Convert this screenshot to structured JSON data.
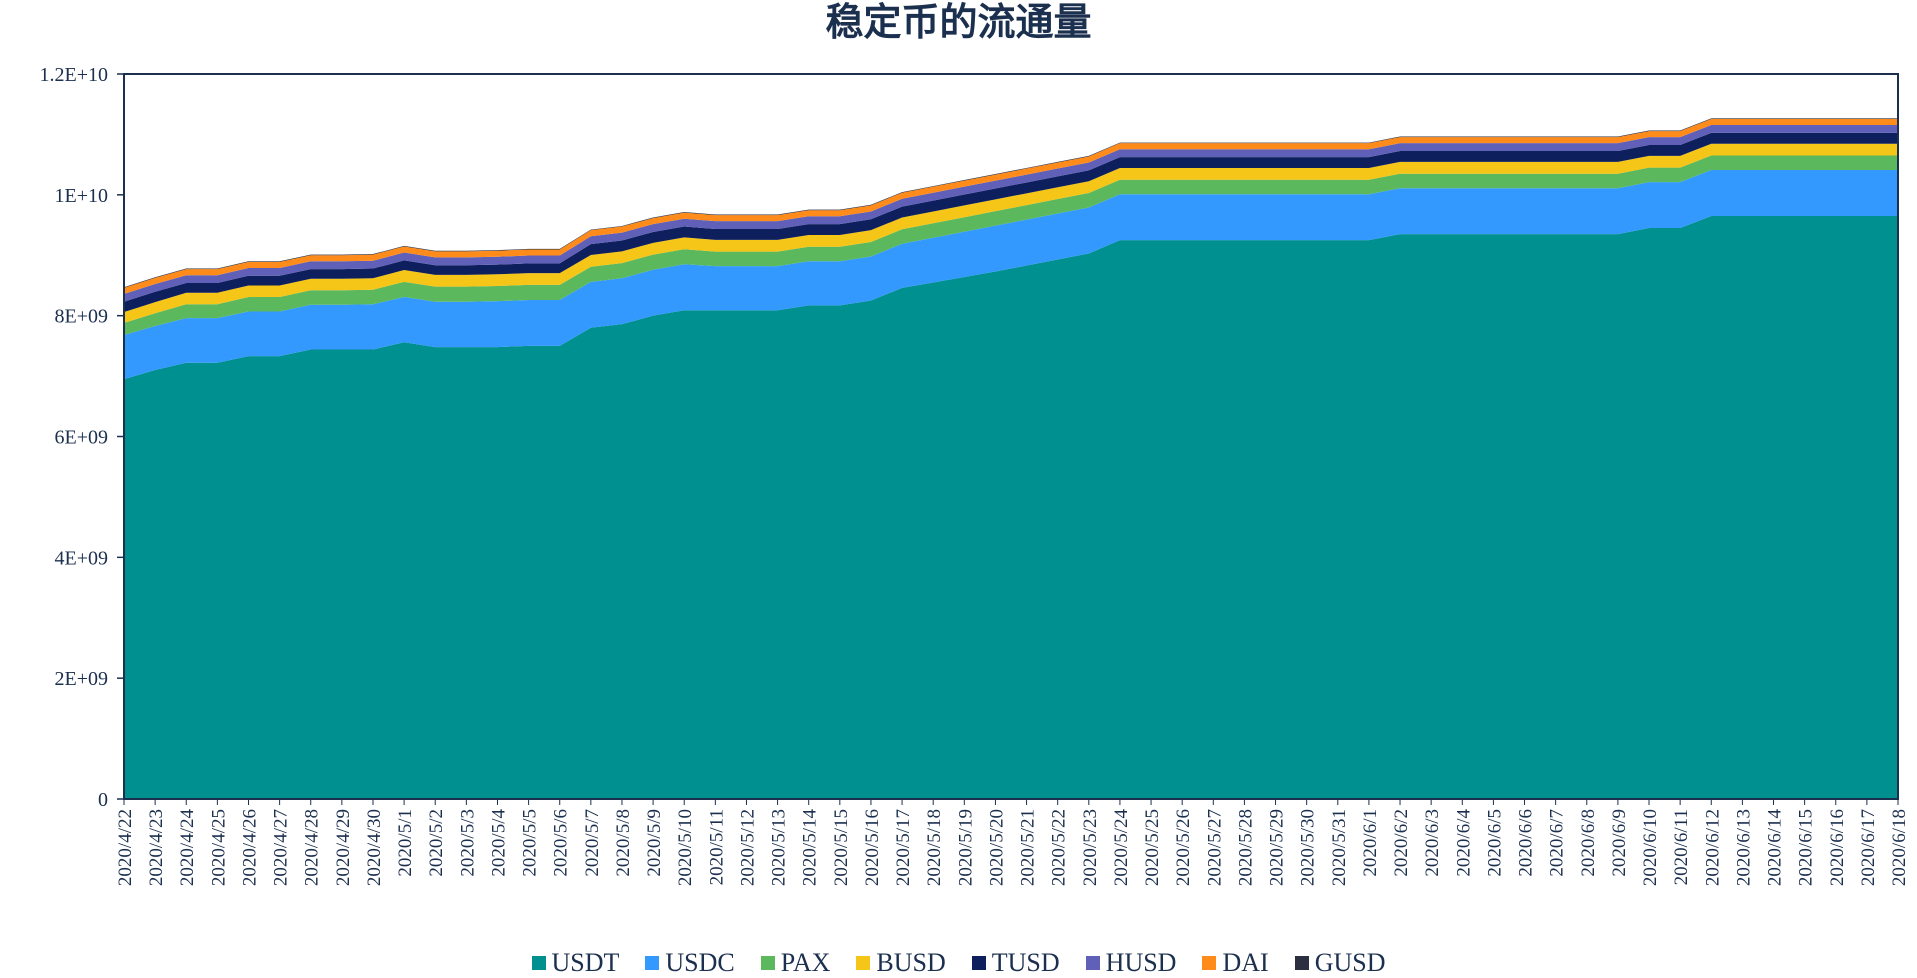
{
  "chart_data": {
    "type": "area",
    "stacked": true,
    "title": "稳定币的流通量",
    "xlabel": "",
    "ylabel": "",
    "ylim": [
      0,
      12000000000
    ],
    "y_ticks": [
      "0",
      "2E+09",
      "4E+09",
      "6E+09",
      "8E+09",
      "1E+10",
      "1.2E+10"
    ],
    "y_tick_values": [
      0,
      2000000000,
      4000000000,
      6000000000,
      8000000000,
      10000000000,
      12000000000
    ],
    "grid": false,
    "legend_position": "bottom",
    "x": [
      "2020/4/22",
      "2020/4/23",
      "2020/4/24",
      "2020/4/25",
      "2020/4/26",
      "2020/4/27",
      "2020/4/28",
      "2020/4/29",
      "2020/4/30",
      "2020/5/1",
      "2020/5/2",
      "2020/5/3",
      "2020/5/4",
      "2020/5/5",
      "2020/5/6",
      "2020/5/7",
      "2020/5/8",
      "2020/5/9",
      "2020/5/10",
      "2020/5/11",
      "2020/5/12",
      "2020/5/13",
      "2020/5/14",
      "2020/5/15",
      "2020/5/16",
      "2020/5/17",
      "2020/5/18",
      "2020/5/19",
      "2020/5/20",
      "2020/5/21",
      "2020/5/22",
      "2020/5/23",
      "2020/5/24",
      "2020/5/25",
      "2020/5/26",
      "2020/5/27",
      "2020/5/28",
      "2020/5/29",
      "2020/5/30",
      "2020/5/31",
      "2020/6/1",
      "2020/6/2",
      "2020/6/3",
      "2020/6/4",
      "2020/6/5",
      "2020/6/6",
      "2020/6/7",
      "2020/6/8",
      "2020/6/9",
      "2020/6/10",
      "2020/6/11",
      "2020/6/12",
      "2020/6/13",
      "2020/6/14",
      "2020/6/15",
      "2020/6/16",
      "2020/6/17",
      "2020/6/18"
    ],
    "series": [
      {
        "name": "USDT",
        "color": "#009090",
        "values": [
          6950000000,
          7100000000,
          7220000000,
          7220000000,
          7330000000,
          7330000000,
          7440000000,
          7440000000,
          7440000000,
          7560000000,
          7480000000,
          7480000000,
          7480000000,
          7500000000,
          7500000000,
          7800000000,
          7860000000,
          8000000000,
          8090000000,
          8090000000,
          8090000000,
          8090000000,
          8170000000,
          8170000000,
          8250000000,
          8460000000,
          8550000000,
          8640000000,
          8730000000,
          8830000000,
          8930000000,
          9030000000,
          9250000000,
          9250000000,
          9250000000,
          9250000000,
          9250000000,
          9250000000,
          9250000000,
          9250000000,
          9250000000,
          9350000000,
          9350000000,
          9350000000,
          9350000000,
          9350000000,
          9350000000,
          9350000000,
          9350000000,
          9450000000,
          9450000000,
          9650000000,
          9650000000,
          9650000000,
          9650000000,
          9650000000,
          9650000000,
          9650000000
        ]
      },
      {
        "name": "USDC",
        "color": "#3399ff",
        "values": [
          730000000,
          730000000,
          740000000,
          740000000,
          740000000,
          740000000,
          740000000,
          740000000,
          750000000,
          750000000,
          750000000,
          750000000,
          760000000,
          760000000,
          760000000,
          760000000,
          760000000,
          760000000,
          760000000,
          730000000,
          730000000,
          730000000,
          730000000,
          730000000,
          730000000,
          730000000,
          740000000,
          750000000,
          760000000,
          760000000,
          760000000,
          760000000,
          760000000,
          760000000,
          760000000,
          760000000,
          760000000,
          760000000,
          760000000,
          760000000,
          760000000,
          760000000,
          760000000,
          760000000,
          760000000,
          760000000,
          760000000,
          760000000,
          760000000,
          760000000,
          760000000,
          760000000,
          760000000,
          760000000,
          760000000,
          760000000,
          760000000,
          760000000
        ]
      },
      {
        "name": "PAX",
        "color": "#5cb85c",
        "values": [
          200000000,
          210000000,
          230000000,
          230000000,
          240000000,
          240000000,
          240000000,
          240000000,
          240000000,
          250000000,
          250000000,
          250000000,
          250000000,
          250000000,
          250000000,
          250000000,
          250000000,
          250000000,
          250000000,
          240000000,
          240000000,
          240000000,
          240000000,
          240000000,
          240000000,
          240000000,
          240000000,
          240000000,
          240000000,
          240000000,
          240000000,
          240000000,
          240000000,
          240000000,
          240000000,
          240000000,
          240000000,
          240000000,
          240000000,
          240000000,
          240000000,
          240000000,
          240000000,
          240000000,
          240000000,
          240000000,
          240000000,
          240000000,
          240000000,
          240000000,
          240000000,
          240000000,
          240000000,
          240000000,
          240000000,
          240000000,
          240000000,
          240000000
        ]
      },
      {
        "name": "BUSD",
        "color": "#f5c518",
        "values": [
          180000000,
          185000000,
          190000000,
          190000000,
          190000000,
          190000000,
          190000000,
          190000000,
          190000000,
          195000000,
          195000000,
          195000000,
          195000000,
          195000000,
          195000000,
          195000000,
          195000000,
          195000000,
          195000000,
          195000000,
          195000000,
          195000000,
          195000000,
          195000000,
          195000000,
          195000000,
          195000000,
          195000000,
          195000000,
          195000000,
          195000000,
          195000000,
          195000000,
          195000000,
          195000000,
          195000000,
          195000000,
          195000000,
          195000000,
          195000000,
          195000000,
          195000000,
          195000000,
          195000000,
          195000000,
          195000000,
          195000000,
          195000000,
          195000000,
          195000000,
          195000000,
          195000000,
          195000000,
          195000000,
          195000000,
          195000000,
          195000000,
          195000000
        ]
      },
      {
        "name": "TUSD",
        "color": "#0d1f5c",
        "values": [
          170000000,
          170000000,
          160000000,
          160000000,
          160000000,
          160000000,
          160000000,
          160000000,
          160000000,
          160000000,
          160000000,
          160000000,
          160000000,
          160000000,
          160000000,
          180000000,
          180000000,
          180000000,
          180000000,
          180000000,
          180000000,
          180000000,
          180000000,
          180000000,
          180000000,
          180000000,
          180000000,
          180000000,
          180000000,
          180000000,
          180000000,
          180000000,
          180000000,
          180000000,
          180000000,
          180000000,
          180000000,
          180000000,
          180000000,
          180000000,
          180000000,
          180000000,
          180000000,
          180000000,
          180000000,
          180000000,
          180000000,
          180000000,
          180000000,
          180000000,
          180000000,
          180000000,
          180000000,
          180000000,
          180000000,
          180000000,
          180000000,
          180000000
        ]
      },
      {
        "name": "HUSD",
        "color": "#6060b8",
        "values": [
          130000000,
          130000000,
          130000000,
          130000000,
          130000000,
          130000000,
          130000000,
          130000000,
          130000000,
          130000000,
          130000000,
          130000000,
          130000000,
          130000000,
          130000000,
          130000000,
          130000000,
          130000000,
          130000000,
          130000000,
          130000000,
          130000000,
          130000000,
          130000000,
          130000000,
          130000000,
          130000000,
          130000000,
          130000000,
          130000000,
          130000000,
          130000000,
          130000000,
          130000000,
          130000000,
          130000000,
          130000000,
          130000000,
          130000000,
          130000000,
          130000000,
          130000000,
          130000000,
          130000000,
          130000000,
          130000000,
          130000000,
          130000000,
          130000000,
          130000000,
          130000000,
          130000000,
          130000000,
          130000000,
          130000000,
          130000000,
          130000000,
          130000000
        ]
      },
      {
        "name": "DAI",
        "color": "#ff8c1a",
        "values": [
          100000000,
          100000000,
          100000000,
          100000000,
          100000000,
          100000000,
          100000000,
          100000000,
          100000000,
          100000000,
          100000000,
          100000000,
          100000000,
          100000000,
          100000000,
          100000000,
          100000000,
          100000000,
          100000000,
          100000000,
          100000000,
          100000000,
          100000000,
          100000000,
          100000000,
          100000000,
          100000000,
          100000000,
          100000000,
          100000000,
          100000000,
          100000000,
          100000000,
          100000000,
          100000000,
          100000000,
          100000000,
          100000000,
          100000000,
          100000000,
          100000000,
          100000000,
          100000000,
          100000000,
          100000000,
          100000000,
          100000000,
          100000000,
          100000000,
          100000000,
          100000000,
          100000000,
          100000000,
          100000000,
          100000000,
          100000000,
          100000000,
          100000000
        ]
      },
      {
        "name": "GUSD",
        "color": "#2b2f3f",
        "values": [
          10000000,
          10000000,
          10000000,
          10000000,
          10000000,
          10000000,
          10000000,
          10000000,
          10000000,
          10000000,
          10000000,
          10000000,
          10000000,
          10000000,
          10000000,
          10000000,
          10000000,
          10000000,
          10000000,
          10000000,
          10000000,
          10000000,
          10000000,
          10000000,
          10000000,
          10000000,
          10000000,
          10000000,
          10000000,
          10000000,
          10000000,
          10000000,
          10000000,
          10000000,
          10000000,
          10000000,
          10000000,
          10000000,
          10000000,
          10000000,
          10000000,
          10000000,
          10000000,
          10000000,
          10000000,
          10000000,
          10000000,
          10000000,
          10000000,
          10000000,
          10000000,
          10000000,
          10000000,
          10000000,
          10000000,
          10000000,
          10000000,
          10000000
        ]
      }
    ]
  }
}
